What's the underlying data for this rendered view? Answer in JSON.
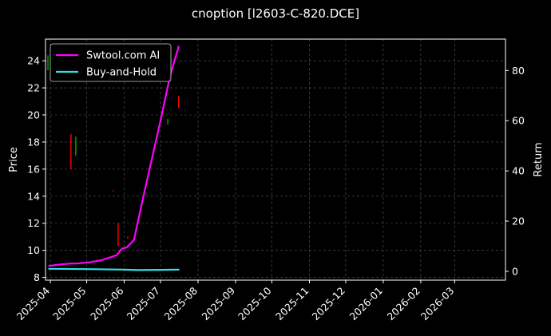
{
  "chart_data": {
    "type": "line",
    "title": "cnoption [l2603-C-820.DCE]",
    "ylabel_left": "Price",
    "ylabel_right": "Return",
    "xlabel": "",
    "grid": true,
    "background": "#000000",
    "legend_placement": "top-left",
    "x_ticks": [
      "2025-04",
      "2025-05",
      "2025-06",
      "2025-07",
      "2025-08",
      "2025-09",
      "2025-10",
      "2025-11",
      "2025-12",
      "2026-01",
      "2026-02",
      "2026-03"
    ],
    "xlim": [
      "2025-03-28",
      "2026-04-12"
    ],
    "y_left_ticks": [
      8,
      10,
      12,
      14,
      16,
      18,
      20,
      22,
      24
    ],
    "ylim_left": [
      7.8,
      25.6
    ],
    "y_right_ticks": [
      0,
      20,
      40,
      60,
      80
    ],
    "ylim_right": [
      -3.5,
      92.5
    ],
    "series": [
      {
        "name": "Swtool.com AI",
        "axis": "right",
        "color": "#ff00ff",
        "points": [
          [
            "2025-03-31",
            2.2
          ],
          [
            "2025-04-10",
            2.8
          ],
          [
            "2025-04-18",
            3.1
          ],
          [
            "2025-04-23",
            3.1
          ],
          [
            "2025-05-03",
            3.6
          ],
          [
            "2025-05-13",
            4.4
          ],
          [
            "2025-05-22",
            5.8
          ],
          [
            "2025-05-26",
            6.5
          ],
          [
            "2025-05-30",
            9.0
          ],
          [
            "2025-06-03",
            9.5
          ],
          [
            "2025-06-09",
            12.5
          ],
          [
            "2025-06-16",
            28.0
          ],
          [
            "2025-06-23",
            43.0
          ],
          [
            "2025-07-01",
            60.0
          ],
          [
            "2025-07-09",
            78.0
          ],
          [
            "2025-07-16",
            89.5
          ]
        ]
      },
      {
        "name": "Buy-and-Hold",
        "axis": "right",
        "color": "#33e0e8",
        "points": [
          [
            "2025-03-31",
            1.0
          ],
          [
            "2025-05-01",
            0.9
          ],
          [
            "2025-06-01",
            0.7
          ],
          [
            "2025-06-12",
            0.5
          ],
          [
            "2025-07-01",
            0.6
          ],
          [
            "2025-07-16",
            0.7
          ]
        ]
      }
    ],
    "candles": [
      {
        "date": "2025-03-30",
        "low": 23.3,
        "high": 24.4,
        "color": "#00aa00"
      },
      {
        "date": "2025-04-18",
        "low": 16.0,
        "high": 18.6,
        "color": "#ff0000"
      },
      {
        "date": "2025-04-22",
        "low": 17.0,
        "high": 18.4,
        "color": "#00aa00"
      },
      {
        "date": "2025-05-23",
        "low": 14.35,
        "high": 14.45,
        "color": "#ff0000"
      },
      {
        "date": "2025-05-27",
        "low": 10.3,
        "high": 12.0,
        "color": "#ff0000"
      },
      {
        "date": "2025-06-04",
        "low": 10.85,
        "high": 11.05,
        "color": "#ff0000"
      },
      {
        "date": "2025-07-07",
        "low": 19.3,
        "high": 19.7,
        "color": "#00aa00"
      },
      {
        "date": "2025-07-16",
        "low": 20.5,
        "high": 21.4,
        "color": "#ff0000"
      }
    ]
  }
}
